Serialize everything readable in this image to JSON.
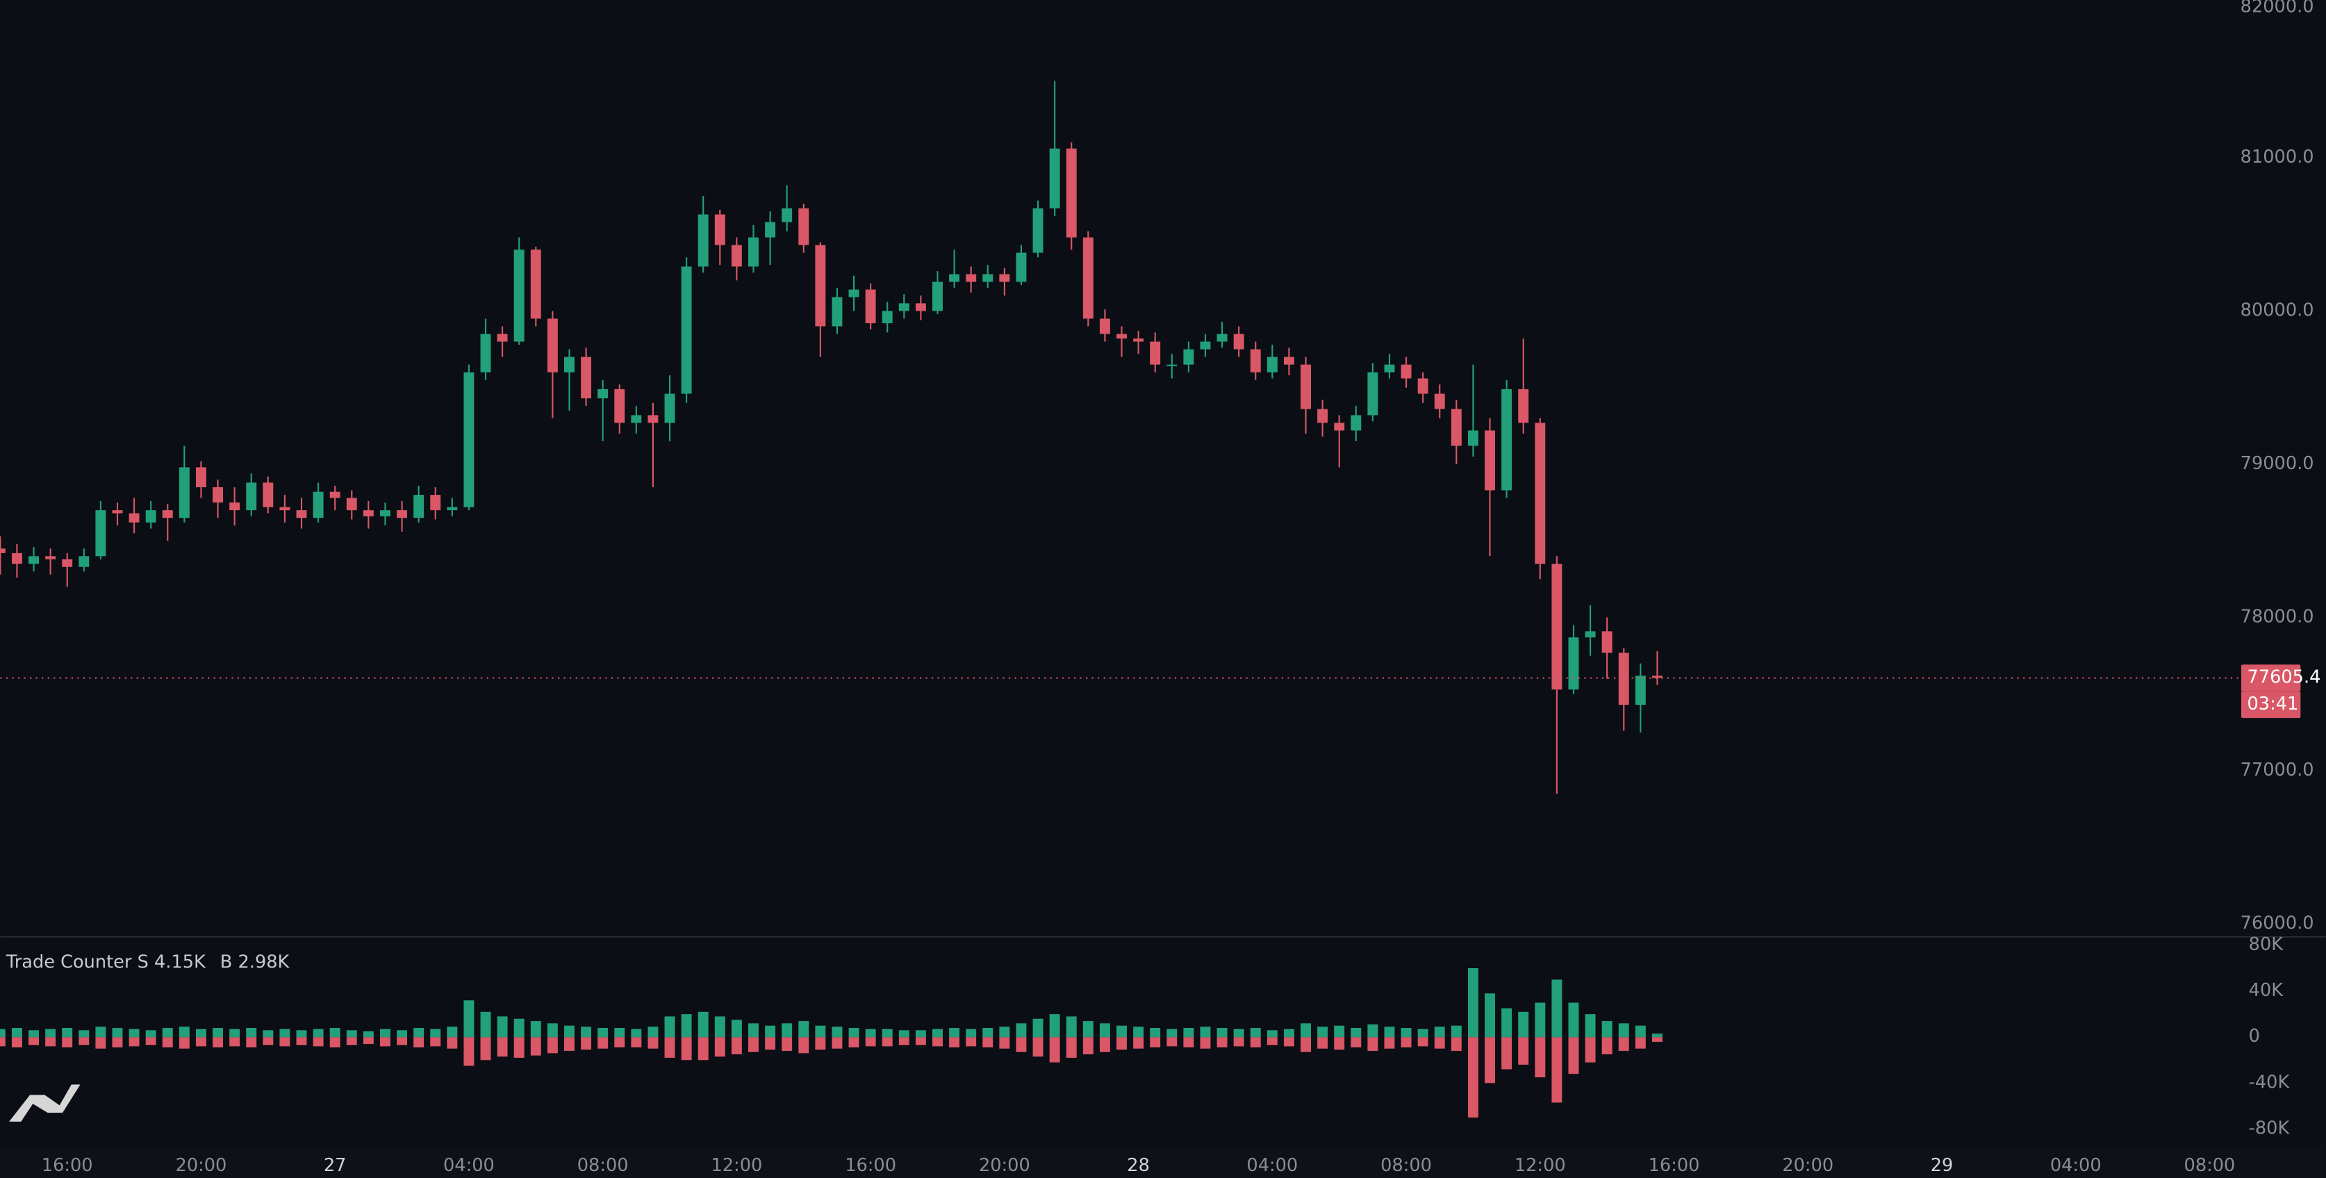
{
  "chart_data": {
    "type": "candlestick",
    "up_color": "#22a07a",
    "down_color": "#d95766",
    "grid": false,
    "xlim": [
      -10,
      56.9
    ],
    "xticks": [
      {
        "value": -8,
        "label": "16:00"
      },
      {
        "value": -4,
        "label": "20:00"
      },
      {
        "value": 0,
        "label": "27"
      },
      {
        "value": 4,
        "label": "04:00"
      },
      {
        "value": 8,
        "label": "08:00"
      },
      {
        "value": 12,
        "label": "12:00"
      },
      {
        "value": 16,
        "label": "16:00"
      },
      {
        "value": 20,
        "label": "20:00"
      },
      {
        "value": 24,
        "label": "28"
      },
      {
        "value": 28,
        "label": "04:00"
      },
      {
        "value": 32,
        "label": "08:00"
      },
      {
        "value": 36,
        "label": "12:00"
      },
      {
        "value": 40,
        "label": "16:00"
      },
      {
        "value": 44,
        "label": "20:00"
      },
      {
        "value": 48,
        "label": "29"
      },
      {
        "value": 52,
        "label": "04:00"
      },
      {
        "value": 56,
        "label": "08:00"
      }
    ],
    "ylim": [
      75911,
      82029
    ],
    "yticks": [
      {
        "value": 76000,
        "label": "76000.0"
      },
      {
        "value": 77000,
        "label": "77000.0"
      },
      {
        "value": 78000,
        "label": "78000.0"
      },
      {
        "value": 79000,
        "label": "79000.0"
      },
      {
        "value": 80000,
        "label": "80000.0"
      },
      {
        "value": 81000,
        "label": "81000.0"
      },
      {
        "value": 82000,
        "label": "82000.0"
      }
    ],
    "current_price": 77605.4,
    "countdown": "03:41",
    "x": [
      -10,
      -9.5,
      -9,
      -8.5,
      -8,
      -7.5,
      -7,
      -6.5,
      -6,
      -5.5,
      -5,
      -4.5,
      -4,
      -3.5,
      -3,
      -2.5,
      -2,
      -1.5,
      -1,
      -0.5,
      0,
      0.5,
      1,
      1.5,
      2,
      2.5,
      3,
      3.5,
      4,
      4.5,
      5,
      5.5,
      6,
      6.5,
      7,
      7.5,
      8,
      8.5,
      9,
      9.5,
      10,
      10.5,
      11,
      11.5,
      12,
      12.5,
      13,
      13.5,
      14,
      14.5,
      15,
      15.5,
      16,
      16.5,
      17,
      17.5,
      18,
      18.5,
      19,
      19.5,
      20,
      20.5,
      21,
      21.5,
      22,
      22.5,
      23,
      23.5,
      24,
      24.5,
      25,
      25.5,
      26,
      26.5,
      27,
      27.5,
      28,
      28.5,
      29,
      29.5,
      30,
      30.5,
      31,
      31.5,
      32,
      32.5,
      33,
      33.5,
      34,
      34.5,
      35,
      35.5,
      36,
      36.5,
      37,
      37.5,
      38,
      38.5,
      39,
      39.5
    ],
    "open": [
      78450,
      78420,
      78350,
      78400,
      78380,
      78330,
      78400,
      78700,
      78680,
      78620,
      78700,
      78650,
      78980,
      78850,
      78750,
      78700,
      78880,
      78720,
      78700,
      78650,
      78820,
      78780,
      78700,
      78660,
      78700,
      78650,
      78800,
      78700,
      78720,
      79600,
      79850,
      79800,
      80400,
      79950,
      79600,
      79700,
      79430,
      79490,
      79270,
      79320,
      79270,
      79460,
      80290,
      80630,
      80430,
      80290,
      80480,
      80580,
      80670,
      80430,
      79900,
      80090,
      80140,
      79920,
      80000,
      80050,
      80000,
      80190,
      80240,
      80190,
      80240,
      80190,
      80380,
      80670,
      81060,
      80480,
      79950,
      79850,
      79820,
      79800,
      79650,
      79650,
      79750,
      79800,
      79850,
      79750,
      79600,
      79700,
      79650,
      79360,
      79270,
      79220,
      79320,
      79600,
      79650,
      79560,
      79460,
      79360,
      79120,
      79220,
      78830,
      79490,
      79270,
      78350,
      77530,
      77870,
      77910,
      77770,
      77430,
      77620
    ],
    "high": [
      78530,
      78480,
      78460,
      78450,
      78420,
      78450,
      78760,
      78750,
      78780,
      78760,
      78740,
      79120,
      79020,
      78900,
      78850,
      78940,
      78920,
      78800,
      78780,
      78880,
      78860,
      78830,
      78760,
      78750,
      78760,
      78860,
      78850,
      78780,
      79650,
      79950,
      79900,
      80480,
      80420,
      80000,
      79750,
      79760,
      79550,
      79520,
      79380,
      79400,
      79580,
      80350,
      80750,
      80660,
      80480,
      80560,
      80650,
      80820,
      80700,
      80450,
      80150,
      80230,
      80180,
      80060,
      80110,
      80100,
      80260,
      80400,
      80290,
      80300,
      80280,
      80430,
      80720,
      81500,
      81100,
      80520,
      80010,
      79900,
      79870,
      79860,
      79720,
      79800,
      79850,
      79930,
      79900,
      79800,
      79780,
      79760,
      79700,
      79420,
      79320,
      79380,
      79660,
      79720,
      79700,
      79600,
      79520,
      79420,
      79650,
      79300,
      79550,
      79820,
      79300,
      78400,
      77950,
      78080,
      78000,
      77800,
      77700,
      77780
    ],
    "low": [
      78280,
      78260,
      78300,
      78280,
      78200,
      78300,
      78380,
      78600,
      78550,
      78580,
      78500,
      78620,
      78780,
      78650,
      78600,
      78660,
      78680,
      78620,
      78580,
      78620,
      78700,
      78640,
      78580,
      78600,
      78560,
      78620,
      78640,
      78660,
      78700,
      79550,
      79700,
      79780,
      79900,
      79300,
      79350,
      79380,
      79150,
      79200,
      79200,
      78850,
      79150,
      79400,
      80250,
      80300,
      80200,
      80250,
      80300,
      80520,
      80380,
      79700,
      79850,
      80000,
      79880,
      79860,
      79950,
      79940,
      79980,
      80150,
      80120,
      80150,
      80100,
      80170,
      80350,
      80620,
      80400,
      79900,
      79800,
      79700,
      79720,
      79600,
      79560,
      79600,
      79700,
      79760,
      79700,
      79550,
      79560,
      79580,
      79200,
      79180,
      78980,
      79150,
      79280,
      79560,
      79500,
      79400,
      79300,
      79000,
      79050,
      78400,
      78780,
      79200,
      78250,
      76850,
      77500,
      77750,
      77600,
      77260,
      77250,
      77560
    ],
    "close": [
      78420,
      78350,
      78400,
      78380,
      78330,
      78400,
      78700,
      78680,
      78620,
      78700,
      78650,
      78980,
      78850,
      78750,
      78700,
      78880,
      78720,
      78700,
      78650,
      78820,
      78780,
      78700,
      78660,
      78700,
      78650,
      78800,
      78700,
      78720,
      79600,
      79850,
      79800,
      80400,
      79950,
      79600,
      79700,
      79430,
      79490,
      79270,
      79320,
      79270,
      79460,
      80290,
      80630,
      80430,
      80290,
      80480,
      80580,
      80670,
      80430,
      79900,
      80090,
      80140,
      79920,
      80000,
      80050,
      80000,
      80190,
      80240,
      80190,
      80240,
      80190,
      80380,
      80670,
      81060,
      80480,
      79950,
      79850,
      79820,
      79800,
      79650,
      79650,
      79750,
      79800,
      79850,
      79750,
      79600,
      79700,
      79650,
      79360,
      79270,
      79220,
      79320,
      79600,
      79650,
      79560,
      79460,
      79360,
      79120,
      79220,
      78830,
      79490,
      79270,
      78350,
      77530,
      77870,
      77910,
      77770,
      77430,
      77620,
      77605.4
    ],
    "indicator": {
      "type": "bar",
      "title": "Trade Counter",
      "ylim": [
        -94200,
        86500
      ],
      "yticks": [
        {
          "value": 80000,
          "label": "80K"
        },
        {
          "value": 40000,
          "label": "40K"
        },
        0,
        {
          "value": -40000,
          "label": "-40K"
        },
        {
          "value": -80000,
          "label": "-80K"
        }
      ],
      "series": [
        {
          "name": "S",
          "color": "#d95766",
          "last_label": "4.15K",
          "values": [
            -8000,
            -9000,
            -7000,
            -8000,
            -9000,
            -7000,
            -10000,
            -9000,
            -8000,
            -7000,
            -9000,
            -10000,
            -8000,
            -9000,
            -8000,
            -9000,
            -7000,
            -8000,
            -7000,
            -8000,
            -9000,
            -7000,
            -6000,
            -8000,
            -7000,
            -9000,
            -8000,
            -10000,
            -25000,
            -20000,
            -17000,
            -18000,
            -16000,
            -14000,
            -12000,
            -11000,
            -10000,
            -9000,
            -9000,
            -10000,
            -18000,
            -20000,
            -20000,
            -17000,
            -15000,
            -13000,
            -11000,
            -12000,
            -14000,
            -11000,
            -10000,
            -9000,
            -8000,
            -8000,
            -7000,
            -7000,
            -8000,
            -9000,
            -8000,
            -9000,
            -10000,
            -13000,
            -17000,
            -22000,
            -18000,
            -15000,
            -13000,
            -11000,
            -10000,
            -9000,
            -8000,
            -9000,
            -10000,
            -9000,
            -8000,
            -9000,
            -7000,
            -8000,
            -13000,
            -10000,
            -11000,
            -9000,
            -12000,
            -10000,
            -9000,
            -8000,
            -10000,
            -12000,
            -70000,
            -40000,
            -28000,
            -24000,
            -35000,
            -57000,
            -32000,
            -22000,
            -15000,
            -12000,
            -10000,
            -4150
          ]
        },
        {
          "name": "B",
          "color": "#22a07a",
          "last_label": "2.98K",
          "values": [
            7000,
            8000,
            6000,
            7000,
            8000,
            6000,
            9000,
            8000,
            7000,
            6000,
            8000,
            9000,
            7000,
            8000,
            7000,
            8000,
            6000,
            7000,
            6000,
            7000,
            8000,
            6000,
            5000,
            7000,
            6000,
            8000,
            7000,
            9000,
            32000,
            22000,
            18000,
            16000,
            14000,
            12000,
            10000,
            9000,
            8000,
            8000,
            7000,
            9000,
            18000,
            20000,
            22000,
            18000,
            15000,
            12000,
            10000,
            12000,
            14000,
            10000,
            9000,
            8000,
            7000,
            7000,
            6000,
            6000,
            7000,
            8000,
            7000,
            8000,
            9000,
            12000,
            16000,
            20000,
            18000,
            14000,
            12000,
            10000,
            9000,
            8000,
            7000,
            8000,
            9000,
            8000,
            7000,
            8000,
            6000,
            7000,
            12000,
            9000,
            10000,
            8000,
            11000,
            9000,
            8000,
            7000,
            9000,
            10000,
            60000,
            38000,
            25000,
            22000,
            30000,
            50000,
            30000,
            20000,
            14000,
            12000,
            10000,
            2980
          ]
        }
      ]
    }
  }
}
